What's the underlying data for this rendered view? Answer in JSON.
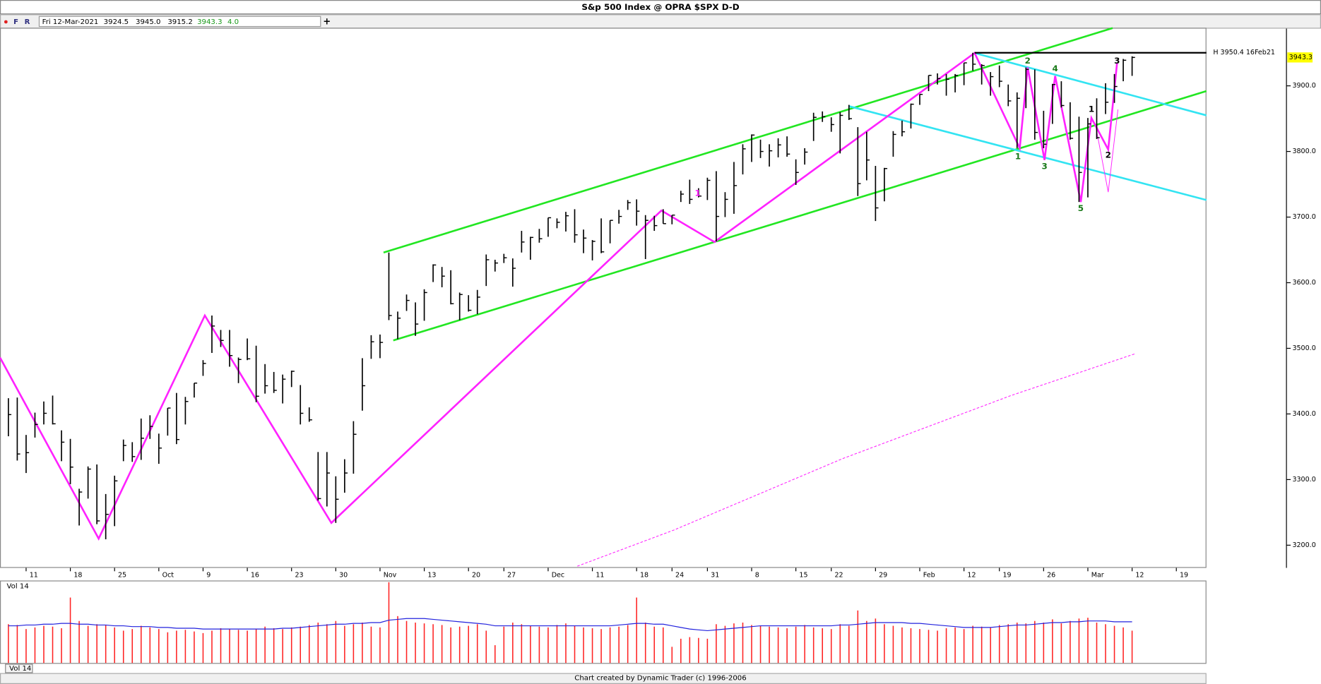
{
  "chart_data": {
    "type": "ohlc",
    "title": "S&p 500 Index @ OPRA $SPX   D-D",
    "toolbar": [
      "F",
      "R",
      "+"
    ],
    "header": {
      "date": "Fri 12-Mar-2021",
      "open": "3924.5",
      "high": "3945.0",
      "low": "3915.2",
      "close": "3943.3",
      "change": "4.0"
    },
    "footer": "Chart created by Dynamic Trader  (c) 1996-2006",
    "ylim": [
      3165.4,
      3988.5
    ],
    "yticks": [
      {
        "value": 3200,
        "label": "3200.0"
      },
      {
        "value": 3300,
        "label": "3300.0"
      },
      {
        "value": 3400,
        "label": "3400.0"
      },
      {
        "value": 3500,
        "label": "3500.0"
      },
      {
        "value": 3600,
        "label": "3600.0"
      },
      {
        "value": 3700,
        "label": "3700.0"
      },
      {
        "value": 3800,
        "label": "3800.0"
      },
      {
        "value": 3900,
        "label": "3900.0"
      }
    ],
    "xlim": [
      -0.95,
      135.4
    ],
    "xticks": [
      {
        "value": 2,
        "label": "11"
      },
      {
        "value": 7,
        "label": "18"
      },
      {
        "value": 12,
        "label": "25"
      },
      {
        "value": 17,
        "label": "Oct"
      },
      {
        "value": 22,
        "label": "9"
      },
      {
        "value": 27,
        "label": "16"
      },
      {
        "value": 32,
        "label": "23"
      },
      {
        "value": 37,
        "label": "30"
      },
      {
        "value": 42,
        "label": "Nov"
      },
      {
        "value": 47,
        "label": "13"
      },
      {
        "value": 52,
        "label": "20"
      },
      {
        "value": 56,
        "label": "27"
      },
      {
        "value": 61,
        "label": "Dec"
      },
      {
        "value": 66,
        "label": "11"
      },
      {
        "value": 71,
        "label": "18"
      },
      {
        "value": 75,
        "label": "24"
      },
      {
        "value": 79,
        "label": "31"
      },
      {
        "value": 84,
        "label": "8"
      },
      {
        "value": 89,
        "label": "15"
      },
      {
        "value": 93,
        "label": "22"
      },
      {
        "value": 98,
        "label": "29"
      },
      {
        "value": 103,
        "label": "Feb"
      },
      {
        "value": 108,
        "label": "12"
      },
      {
        "value": 112,
        "label": "19"
      },
      {
        "value": 117,
        "label": "26"
      },
      {
        "value": 122,
        "label": "Mar"
      },
      {
        "value": 127,
        "label": "12"
      },
      {
        "value": 132,
        "label": "19"
      }
    ],
    "bar_color": "#000000",
    "high": [
      3424,
      3425,
      3368,
      3402,
      3419,
      3428,
      3375,
      3362,
      3286,
      3320,
      3323,
      3278,
      3306,
      3361,
      3357,
      3393,
      3398,
      3370,
      3409,
      3432,
      3426,
      3447,
      3482,
      3550,
      3528,
      3528,
      3486,
      3515,
      3504,
      3476,
      3464,
      3460,
      3466,
      3444,
      3410,
      3342,
      3342,
      3305,
      3331,
      3389,
      3485,
      3520,
      3521,
      3646,
      3556,
      3582,
      3570,
      3590,
      3628,
      3624,
      3619,
      3585,
      3581,
      3589,
      3643,
      3635,
      3644,
      3637,
      3679,
      3670,
      3682,
      3699,
      3698,
      3708,
      3712,
      3681,
      3665,
      3698,
      3695,
      3711,
      3726,
      3727,
      3703,
      3702,
      3712,
      3703,
      3740,
      3757,
      3744,
      3760,
      3770,
      3738,
      3784,
      3811,
      3826,
      3818,
      3811,
      3820,
      3823,
      3788,
      3805,
      3859,
      3861,
      3852,
      3860,
      3871,
      3837,
      3830,
      3778,
      3775,
      3831,
      3847,
      3873,
      3887,
      3916,
      3919,
      3918,
      3918,
      3935,
      3950.4,
      3933,
      3921,
      3931,
      3902,
      3890,
      3928,
      3925,
      3862,
      3903,
      3907,
      3875,
      3853,
      3851,
      3881,
      3904,
      3918,
      3941,
      3945.0
    ],
    "low": [
      3366,
      3329,
      3310,
      3364,
      3384,
      3384,
      3328,
      3293,
      3230,
      3271,
      3232,
      3209,
      3229,
      3328,
      3327,
      3330,
      3362,
      3324,
      3367,
      3354,
      3384,
      3425,
      3458,
      3493,
      3502,
      3472,
      3447,
      3482,
      3418,
      3431,
      3432,
      3416,
      3441,
      3384,
      3388,
      3268,
      3259,
      3234,
      3280,
      3309,
      3405,
      3484,
      3485,
      3543,
      3514,
      3557,
      3519,
      3542,
      3601,
      3593,
      3567,
      3543,
      3556,
      3552,
      3595,
      3617,
      3630,
      3594,
      3646,
      3635,
      3661,
      3670,
      3683,
      3678,
      3661,
      3645,
      3634,
      3645,
      3660,
      3690,
      3711,
      3687,
      3636,
      3679,
      3690,
      3689,
      3723,
      3720,
      3730,
      3726,
      3663,
      3700,
      3705,
      3765,
      3784,
      3790,
      3777,
      3791,
      3792,
      3749,
      3780,
      3816,
      3845,
      3830,
      3797,
      3848,
      3732,
      3756,
      3694,
      3724,
      3792,
      3823,
      3835,
      3871,
      3892,
      3902,
      3885,
      3890,
      3901,
      3923,
      3902,
      3885,
      3898,
      3869,
      3805,
      3866,
      3818,
      3805,
      3842,
      3867,
      3818,
      3723,
      3730,
      3819,
      3857,
      3874,
      3907,
      3915.2
    ],
    "close": [
      3399,
      3339,
      3341,
      3384,
      3401,
      3385,
      3357,
      3319,
      3281,
      3316,
      3237,
      3247,
      3298,
      3352,
      3335,
      3363,
      3381,
      3348,
      3409,
      3361,
      3419,
      3447,
      3477,
      3534,
      3512,
      3489,
      3483,
      3484,
      3427,
      3443,
      3436,
      3453,
      3465,
      3401,
      3391,
      3271,
      3310,
      3270,
      3310,
      3369,
      3443,
      3510,
      3509,
      3550,
      3546,
      3573,
      3537,
      3585,
      3627,
      3610,
      3568,
      3582,
      3558,
      3578,
      3635,
      3630,
      3638,
      3622,
      3662,
      3669,
      3667,
      3699,
      3692,
      3702,
      3673,
      3668,
      3663,
      3647,
      3695,
      3701,
      3722,
      3709,
      3695,
      3687,
      3690,
      3703,
      3735,
      3727,
      3732,
      3756,
      3701,
      3727,
      3748,
      3804,
      3825,
      3800,
      3801,
      3810,
      3796,
      3768,
      3799,
      3852,
      3853,
      3841,
      3855,
      3850,
      3751,
      3787,
      3714,
      3774,
      3826,
      3830,
      3872,
      3887,
      3916,
      3911,
      3910,
      3916,
      3935,
      3933,
      3931,
      3914,
      3907,
      3877,
      3881,
      3925,
      3829,
      3811,
      3902,
      3870,
      3820,
      3768,
      3842,
      3821,
      3875,
      3899,
      3939,
      3943.3
    ],
    "last_price": {
      "value": 3943.3,
      "label": "3943.3",
      "color": "#ffff00"
    },
    "high_line": {
      "value": 3950.4,
      "from": 109.2,
      "label": "H 3950.4 16Feb21",
      "color": "#000000"
    },
    "overlays": [
      {
        "color": "#22e622",
        "width": 2.2,
        "dash": false,
        "points": [
          [
            42.4,
            3646
          ],
          [
            124.8,
            3988
          ]
        ]
      },
      {
        "color": "#22e622",
        "width": 2.2,
        "dash": false,
        "points": [
          [
            43.5,
            3512
          ],
          [
            135.4,
            3892
          ]
        ]
      },
      {
        "color": "#33e4f2",
        "width": 2.2,
        "dash": false,
        "points": [
          [
            109.2,
            3950
          ],
          [
            135.4,
            3855
          ]
        ]
      },
      {
        "color": "#33e4f2",
        "width": 2.2,
        "dash": false,
        "points": [
          [
            95,
            3869
          ],
          [
            135.4,
            3726
          ]
        ]
      },
      {
        "color": "#ff22ff",
        "width": 2.2,
        "dash": false,
        "points": [
          [
            -0.95,
            3486
          ],
          [
            10.2,
            3210
          ],
          [
            22.2,
            3550
          ],
          [
            36.5,
            3234
          ],
          [
            73.8,
            3710
          ],
          [
            79.8,
            3662
          ],
          [
            109.2,
            3950
          ],
          [
            114.3,
            3805
          ],
          [
            115.2,
            3928
          ],
          [
            117.1,
            3787
          ],
          [
            118.3,
            3915
          ],
          [
            121.2,
            3723
          ],
          [
            122.4,
            3851
          ],
          [
            124.3,
            3803
          ],
          [
            125.3,
            3935
          ]
        ]
      },
      {
        "color": "#ff22ff",
        "width": 0.8,
        "dash": false,
        "points": [
          [
            122.9,
            3838
          ],
          [
            124.3,
            3738
          ],
          [
            125.4,
            3864
          ]
        ]
      },
      {
        "color": "#ff22ff",
        "width": 0.9,
        "dash": true,
        "points": [
          [
            64.3,
            3168
          ],
          [
            75.2,
            3223
          ],
          [
            94.3,
            3332
          ],
          [
            113.3,
            3428
          ],
          [
            127.4,
            3492
          ]
        ]
      }
    ],
    "annotations": [
      {
        "text": "1",
        "x": 114.1,
        "y": 3792,
        "color": "#1a7a1a"
      },
      {
        "text": "2",
        "x": 115.2,
        "y": 3938,
        "color": "#1a7a1a"
      },
      {
        "text": "3",
        "x": 117.1,
        "y": 3777,
        "color": "#1a7a1a"
      },
      {
        "text": "4",
        "x": 118.3,
        "y": 3926,
        "color": "#1a7a1a"
      },
      {
        "text": "5",
        "x": 121.2,
        "y": 3713,
        "color": "#1a7a1a"
      },
      {
        "text": "1",
        "x": 122.4,
        "y": 3864,
        "color": "#000000"
      },
      {
        "text": "2",
        "x": 124.3,
        "y": 3794,
        "color": "#000000"
      },
      {
        "text": "3",
        "x": 125.3,
        "y": 3938,
        "color": "#000000"
      },
      {
        "text": "1",
        "x": 77.9,
        "y": 3736,
        "color": "#ff22ff"
      }
    ],
    "volume_label": "Vol 14",
    "vlim": [
      0,
      100
    ],
    "volume_color": "#ff2222",
    "avg_color": "#2222dd",
    "volume": [
      48,
      47,
      42,
      44,
      46,
      45,
      43,
      81,
      52,
      46,
      48,
      47,
      44,
      40,
      42,
      46,
      44,
      42,
      38,
      40,
      41,
      39,
      37,
      40,
      43,
      42,
      41,
      40,
      42,
      45,
      43,
      42,
      44,
      45,
      47,
      50,
      48,
      52,
      46,
      48,
      50,
      45,
      44,
      100,
      58,
      52,
      50,
      49,
      48,
      47,
      44,
      45,
      46,
      48,
      40,
      22,
      45,
      50,
      48,
      46,
      45,
      44,
      47,
      49,
      46,
      44,
      43,
      42,
      44,
      45,
      47,
      81,
      50,
      45,
      44,
      20,
      30,
      32,
      31,
      30,
      48,
      46,
      49,
      50,
      47,
      46,
      45,
      44,
      43,
      45,
      47,
      44,
      43,
      42,
      48,
      46,
      65,
      52,
      55,
      48,
      46,
      44,
      43,
      42,
      41,
      40,
      43,
      44,
      42,
      46,
      45,
      44,
      47,
      48,
      50,
      49,
      52,
      50,
      54,
      49,
      52,
      55,
      56,
      50,
      48,
      46,
      44,
      40
    ],
    "volume_avg": [
      46,
      46,
      47,
      47,
      48,
      48,
      49,
      49,
      48,
      48,
      47,
      47,
      46,
      46,
      45,
      45,
      45,
      44,
      44,
      43,
      43,
      43,
      42,
      42,
      42,
      42,
      42,
      42,
      42,
      42,
      42,
      43,
      43,
      44,
      45,
      46,
      47,
      48,
      48,
      49,
      49,
      50,
      50,
      53,
      54,
      55,
      55,
      55,
      54,
      53,
      52,
      51,
      50,
      49,
      48,
      46,
      46,
      46,
      46,
      46,
      46,
      46,
      46,
      46,
      46,
      46,
      46,
      46,
      46,
      47,
      48,
      49,
      49,
      48,
      48,
      46,
      44,
      42,
      41,
      40,
      41,
      42,
      43,
      44,
      45,
      46,
      46,
      46,
      46,
      46,
      46,
      46,
      46,
      46,
      47,
      47,
      48,
      49,
      50,
      50,
      50,
      50,
      49,
      49,
      48,
      47,
      46,
      45,
      44,
      44,
      44,
      44,
      45,
      46,
      47,
      47,
      48,
      49,
      50,
      50,
      51,
      51,
      52,
      52,
      52,
      51,
      51,
      51
    ]
  }
}
